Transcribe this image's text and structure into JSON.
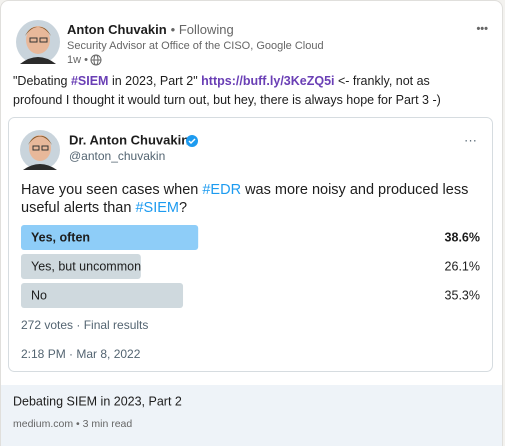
{
  "post": {
    "author": "Anton Chuvakin",
    "follow_status": "• Following",
    "headline": "Security Advisor at Office of the CISO, Google Cloud",
    "age": "1w •",
    "menu": "•••",
    "lines": [
      [
        {
          "text": "\"Debating ",
          "style": "plain"
        },
        {
          "text": "#SIEM",
          "style": "tag"
        },
        {
          "text": " in 2023, Part 2\" ",
          "style": "plain"
        },
        {
          "text": "https://buff.ly/3KeZQ5i",
          "style": "tag"
        },
        {
          "text": " <- frankly, not as",
          "style": "plain"
        }
      ],
      [
        {
          "text": "profound I thought it would turn out, but hey, there is always hope for Part 3 -)",
          "style": "plain"
        }
      ]
    ]
  },
  "tweet": {
    "name": "Dr. Anton Chuvakin",
    "handle": "@anton_chuvakin",
    "menu": "···",
    "lines": [
      [
        {
          "text": "Have you seen cases when ",
          "style": "plain"
        },
        {
          "text": "#EDR",
          "style": "tag"
        },
        {
          "text": " was more noisy and produced less",
          "style": "plain"
        }
      ],
      [
        {
          "text": "useful alerts than ",
          "style": "plain"
        },
        {
          "text": "#SIEM",
          "style": "tag"
        },
        {
          "text": "?",
          "style": "plain"
        }
      ]
    ],
    "poll": {
      "xlim": [
        0,
        100
      ],
      "options": [
        {
          "label": "Yes, often",
          "value": 38.6,
          "value_label": "38.6%",
          "color": "#8ecdf8",
          "winner": true
        },
        {
          "label": "Yes, but uncommon",
          "value": 26.1,
          "value_label": "26.1%",
          "color": "#cfd9de",
          "winner": false
        },
        {
          "label": "No",
          "value": 35.3,
          "value_label": "35.3%",
          "color": "#cfd9de",
          "winner": false
        }
      ]
    },
    "votes": "272 votes · Final results",
    "timestamp": "2:18 PM · Mar 8, 2022"
  },
  "preview": {
    "title": "Debating SIEM in 2023, Part 2",
    "meta": "medium.com • 3 min read"
  }
}
